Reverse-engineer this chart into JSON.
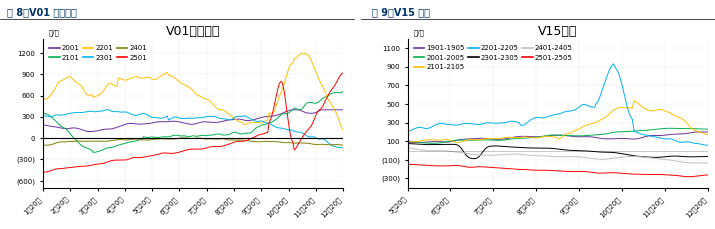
{
  "fig8": {
    "title": "V01合约基差",
    "ylabel": "元/吨",
    "header": "图 8：V01 合约基差",
    "x_labels": [
      "1月20日",
      "2月20日",
      "3月20日",
      "4月20日",
      "5月20日",
      "6月20日",
      "7月20日",
      "8月20日",
      "9月20日",
      "10月20日",
      "11月20日",
      "12月20日"
    ],
    "ylim": [
      -700,
      1400
    ],
    "yticks": [
      -600,
      -300,
      0,
      300,
      600,
      900,
      1200
    ],
    "series": {
      "2001": {
        "color": "#7030A0",
        "style": "-"
      },
      "2101": {
        "color": "#00B050",
        "style": "-"
      },
      "2201": {
        "color": "#FFC000",
        "style": "-"
      },
      "2301": {
        "color": "#00B0F0",
        "style": "-"
      },
      "2401": {
        "color": "#808000",
        "style": "-"
      },
      "2501": {
        "color": "#FF0000",
        "style": "-"
      }
    }
  },
  "fig9": {
    "title": "V15价差",
    "ylabel": "元/吨",
    "header": "图 9：V15 价差",
    "x_labels": [
      "5月20日",
      "6月20日",
      "7月20日",
      "8月20日",
      "9月20日",
      "10月20日",
      "11月20日",
      "12月20日"
    ],
    "ylim": [
      -400,
      1200
    ],
    "yticks": [
      -300,
      -100,
      100,
      300,
      500,
      700,
      900,
      1100
    ],
    "series": {
      "1901-1905": {
        "color": "#7030A0",
        "style": "-"
      },
      "2001-2005": {
        "color": "#00B050",
        "style": "-"
      },
      "2101-2105": {
        "color": "#FFC000",
        "style": "-"
      },
      "2201-2205": {
        "color": "#00B0F0",
        "style": "-"
      },
      "2301-2305": {
        "color": "#000000",
        "style": "-"
      },
      "2401-2405": {
        "color": "#C0C0C0",
        "style": "-"
      },
      "2501-2505": {
        "color": "#FF0000",
        "style": "-"
      }
    }
  },
  "background_color": "#FFFFFF",
  "header_bg": "#DDEEFF"
}
